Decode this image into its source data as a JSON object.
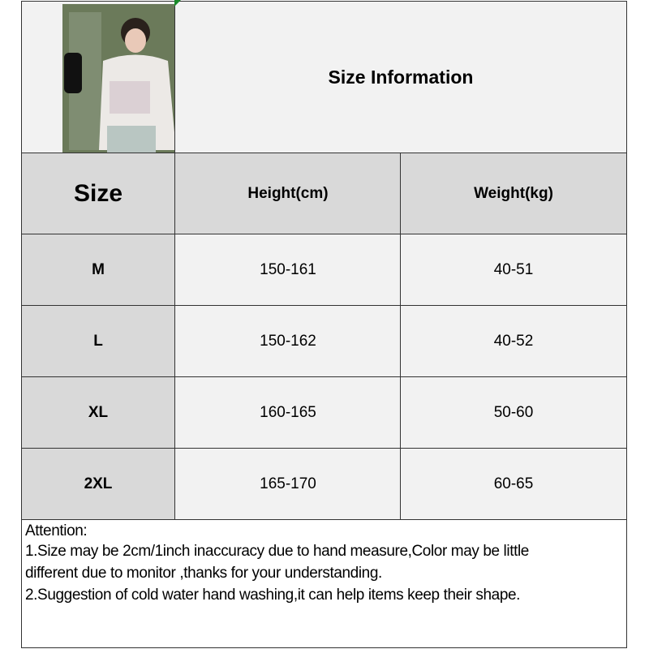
{
  "title": "Size Information",
  "headers": {
    "size": "Size",
    "height": "Height(cm)",
    "weight": "Weight(kg)"
  },
  "rows": [
    {
      "size": "M",
      "height": "150-161",
      "weight": "40-51"
    },
    {
      "size": "L",
      "height": "150-162",
      "weight": "40-52"
    },
    {
      "size": "XL",
      "height": "160-165",
      "weight": "50-60"
    },
    {
      "size": "2XL",
      "height": "165-170",
      "weight": "60-65"
    }
  ],
  "attention": {
    "heading": "Attention:",
    "line1a": "1.Size may be 2cm/1inch inaccuracy due to hand measure,Color may be little",
    "line1b": "different due to monitor ,thanks for your understanding.",
    "line2": "2.Suggestion of cold water hand washing,it can help items keep their shape."
  },
  "colors": {
    "size_column": "#d9d9d9",
    "cells": "#f2f2f2",
    "border": "#333333"
  }
}
